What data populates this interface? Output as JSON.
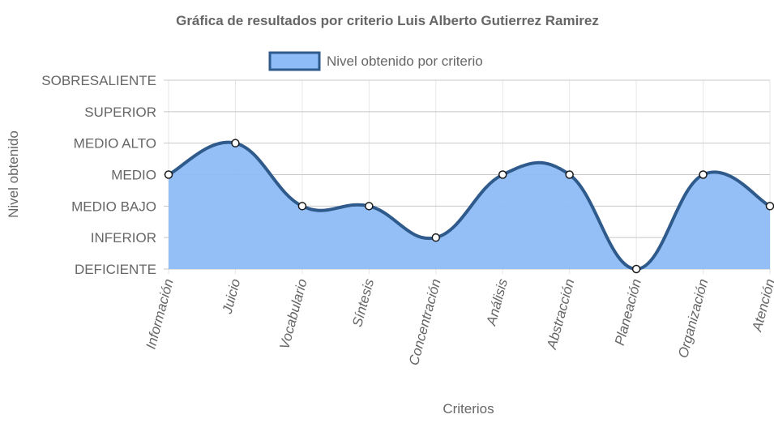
{
  "chart_data": {
    "type": "area",
    "title": "Gráfica de resultados por criterio Luis Alberto Gutierrez Ramirez",
    "xlabel": "Criterios",
    "ylabel": "Nivel obtenido",
    "levels": [
      "DEFICIENTE",
      "INFERIOR",
      "MEDIO BAJO",
      "MEDIO",
      "MEDIO ALTO",
      "SUPERIOR",
      "SOBRESALIENTE"
    ],
    "categories": [
      "Información",
      "Juicio",
      "Vocabulario",
      "Síntesis",
      "Concentración",
      "Análisis",
      "Abstracción",
      "Planeación",
      "Organización",
      "Atención"
    ],
    "series": [
      {
        "name": "Nivel obtenido por criterio",
        "values": [
          "MEDIO",
          "MEDIO ALTO",
          "MEDIO BAJO",
          "MEDIO BAJO",
          "INFERIOR",
          "MEDIO",
          "MEDIO",
          "DEFICIENTE",
          "MEDIO",
          "MEDIO BAJO"
        ]
      }
    ],
    "legend_position": "top",
    "grid": true,
    "colors": {
      "fill": "#8ebcf6",
      "line": "#2f5a8c",
      "point_fill": "#ffffff",
      "point_stroke": "#1a1a1a"
    }
  }
}
